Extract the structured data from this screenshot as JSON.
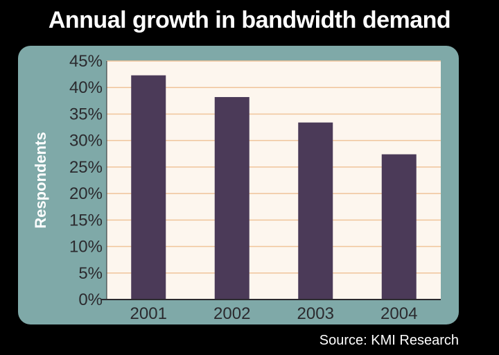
{
  "chart_data": {
    "type": "bar",
    "title": "Annual growth in bandwidth demand",
    "xlabel": "",
    "ylabel": "Respondents",
    "categories": [
      "2001",
      "2002",
      "2003",
      "2004"
    ],
    "values": [
      42.3,
      38.2,
      33.4,
      27.4
    ],
    "ylim": [
      0,
      45
    ],
    "yticks": [
      "0%",
      "5%",
      "10%",
      "15%",
      "20%",
      "25%",
      "30%",
      "35%",
      "40%",
      "45%"
    ],
    "grid": true,
    "legend": "none",
    "source": "Source: KMI Research"
  },
  "colors": {
    "background": "#000000",
    "frame": "#7fa9a8",
    "plot_area": "#fdf6ee",
    "gridline": "#f0c49a",
    "bar": "#4b3a58",
    "text": "#2b2a2e"
  }
}
